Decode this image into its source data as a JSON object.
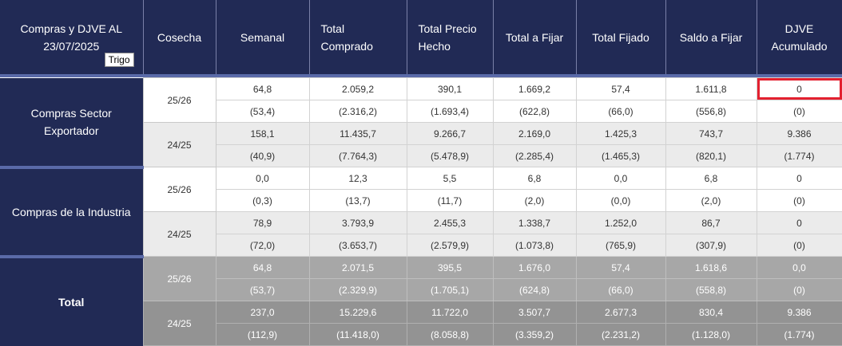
{
  "header": {
    "title": "Compras y DJVE AL 23/07/2025",
    "badge": "Trigo",
    "columns": [
      "Cosecha",
      "Semanal",
      "Total Comprado",
      "Total Precio Hecho",
      "Total a Fijar",
      "Total Fijado",
      "Saldo a Fijar",
      "DJVE Acumulado"
    ]
  },
  "sections": [
    {
      "label": "Compras Sector Exportador",
      "harvests": [
        {
          "harvest": "25/26",
          "values": [
            "64,8",
            "2.059,2",
            "390,1",
            "1.669,2",
            "57,4",
            "1.611,8",
            "0"
          ],
          "diffs": [
            "(53,4)",
            "(2.316,2)",
            "(1.693,4)",
            "(622,8)",
            "(66,0)",
            "(556,8)",
            "(0)"
          ]
        },
        {
          "harvest": "24/25",
          "values": [
            "158,1",
            "11.435,7",
            "9.266,7",
            "2.169,0",
            "1.425,3",
            "743,7",
            "9.386"
          ],
          "diffs": [
            "(40,9)",
            "(7.764,3)",
            "(5.478,9)",
            "(2.285,4)",
            "(1.465,3)",
            "(820,1)",
            "(1.774)"
          ]
        }
      ]
    },
    {
      "label": "Compras de la Industria",
      "harvests": [
        {
          "harvest": "25/26",
          "values": [
            "0,0",
            "12,3",
            "5,5",
            "6,8",
            "0,0",
            "6,8",
            "0"
          ],
          "diffs": [
            "(0,3)",
            "(13,7)",
            "(11,7)",
            "(2,0)",
            "(0,0)",
            "(2,0)",
            "(0)"
          ]
        },
        {
          "harvest": "24/25",
          "values": [
            "78,9",
            "3.793,9",
            "2.455,3",
            "1.338,7",
            "1.252,0",
            "86,7",
            "0"
          ],
          "diffs": [
            "(72,0)",
            "(3.653,7)",
            "(2.579,9)",
            "(1.073,8)",
            "(765,9)",
            "(307,9)",
            "(0)"
          ]
        }
      ]
    },
    {
      "label": "Total",
      "harvests": [
        {
          "harvest": "25/26",
          "values": [
            "64,8",
            "2.071,5",
            "395,5",
            "1.676,0",
            "57,4",
            "1.618,6",
            "0,0"
          ],
          "diffs": [
            "(53,7)",
            "(2.329,9)",
            "(1.705,1)",
            "(624,8)",
            "(66,0)",
            "(558,8)",
            "(0)"
          ]
        },
        {
          "harvest": "24/25",
          "values": [
            "237,0",
            "15.229,6",
            "11.722,0",
            "3.507,7",
            "2.677,3",
            "830,4",
            "9.386"
          ],
          "diffs": [
            "(112,9)",
            "(11.418,0)",
            "(8.058,8)",
            "(3.359,2)",
            "(2.231,2)",
            "(1.128,0)",
            "(1.774)"
          ]
        }
      ]
    }
  ],
  "colors": {
    "header_bg": "#212a55",
    "separator": "#5a6aa8",
    "highlight_border": "#e3202f",
    "total_bg": "#a7a7a7"
  }
}
